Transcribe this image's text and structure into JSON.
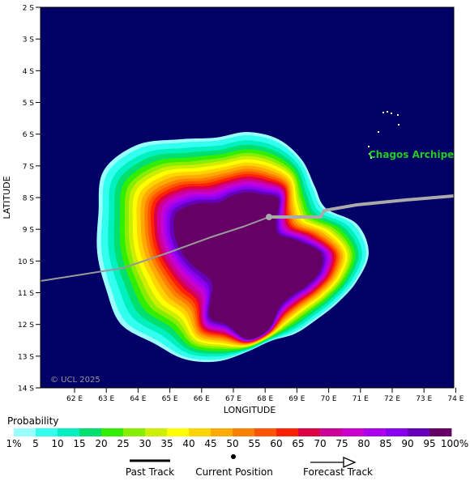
{
  "map": {
    "latitude_label": "LATITUDE",
    "longitude_label": "LONGITUDE",
    "lat_ticks": [
      "2 S",
      "3 S",
      "4 S",
      "5 S",
      "6 S",
      "7 S",
      "8 S",
      "9 S",
      "10 S",
      "11 S",
      "12 S",
      "13 S",
      "14 S"
    ],
    "lon_ticks": [
      "62 E",
      "63 E",
      "64 E",
      "65 E",
      "66 E",
      "67 E",
      "68 E",
      "69 E",
      "70 E",
      "71 E",
      "72 E",
      "73 E",
      "74 E"
    ],
    "place_label": "Chagos Archipe",
    "copyright": "© UCL 2025",
    "ocean_color": "#000066",
    "place_color": "#22cc22",
    "track_color": "#999999",
    "current_position": {
      "lon": 68.1,
      "lat": -8.6
    }
  },
  "legend": {
    "title": "Probability",
    "labels": [
      "1%",
      "5",
      "10",
      "15",
      "20",
      "25",
      "30",
      "35",
      "40",
      "45",
      "50",
      "55",
      "60",
      "65",
      "70",
      "75",
      "80",
      "85",
      "90",
      "95",
      "100%"
    ],
    "colors": [
      "#99ffff",
      "#33ffee",
      "#00f0c0",
      "#00e070",
      "#33ee00",
      "#88ee00",
      "#ccee00",
      "#ffff00",
      "#ffd400",
      "#ffaa00",
      "#ff8000",
      "#ff5500",
      "#ff2200",
      "#dd0044",
      "#cc0099",
      "#cc00cc",
      "#aa00ee",
      "#8800ee",
      "#6600bb",
      "#660066"
    ]
  },
  "track_legend": {
    "past": "Past Track",
    "current": "Current Position",
    "forecast": "Forecast Track"
  }
}
